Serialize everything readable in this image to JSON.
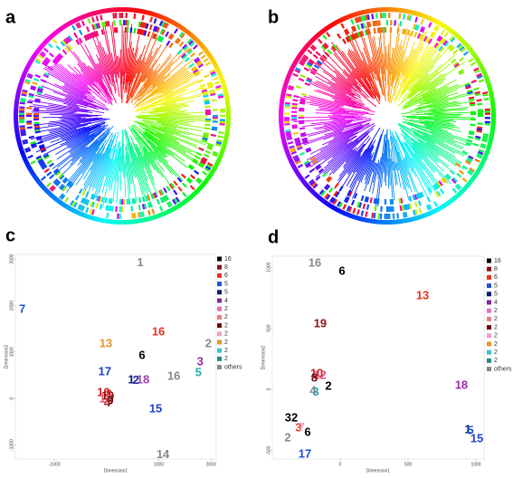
{
  "panels": [
    "a",
    "b"
  ],
  "chart_data": [
    {
      "type": "scatter",
      "panel": "c",
      "xlabel": "Dimension1",
      "ylabel": "Dimension2",
      "xlim": [
        -1750,
        2100
      ],
      "ylim": [
        -1300,
        3100
      ],
      "xticks": [
        -1000,
        1000,
        2000
      ],
      "yticks": [
        -1000,
        0,
        1000,
        2000,
        3000
      ],
      "labels": [
        "1",
        "7",
        "16",
        "13",
        "2",
        "6",
        "3",
        "5",
        "16",
        "17",
        "18",
        "10",
        "19",
        "8",
        "12",
        "9",
        "4",
        "1",
        "2",
        "15",
        "14"
      ],
      "colors": [
        "#888888",
        "#1f4fd6",
        "#e8321e",
        "#e0962a",
        "#888888",
        "#000000",
        "#9b2aa8",
        "#2aa8a8",
        "#888888",
        "#1f3fc8",
        "#a040b0",
        "#c82020",
        "#8b1010",
        "#d02828",
        "#e05070",
        "#5a1010",
        "#a02a2a",
        "#0a1a70",
        "#1a2aa0",
        "#2040d0",
        "#888888"
      ],
      "x": [
        643,
        -1617,
        991,
        -17,
        1948,
        678,
        1791,
        1757,
        1287,
        -35,
        696,
        -60,
        20,
        40,
        -20,
        70,
        10,
        470,
        560,
        939,
        1078
      ],
      "y": [
        2910,
        1914,
        1426,
        1172,
        1172,
        918,
        781,
        547,
        469,
        566,
        391,
        120,
        40,
        80,
        -20,
        -60,
        -100,
        391,
        380,
        -234,
        -1211
      ],
      "legend": {
        "names": [
          "16",
          "8",
          "6",
          "5",
          "5",
          "4",
          "2",
          "2",
          "2",
          "2",
          "2",
          "2",
          "2",
          "others"
        ],
        "colors": [
          "#000000",
          "#8b1010",
          "#e8321e",
          "#1f4fd6",
          "#0a1a70",
          "#7a2a9a",
          "#e070c0",
          "#e08080",
          "#6a0a0a",
          "#f0a0c0",
          "#e0962a",
          "#40c0d0",
          "#2a8a8a",
          "#888888"
        ]
      }
    },
    {
      "type": "scatter",
      "panel": "d",
      "xlabel": "Dimension1",
      "ylabel": "Dimension2",
      "xlim": [
        -500,
        1060
      ],
      "ylim": [
        -570,
        1090
      ],
      "xticks": [
        0,
        500,
        1000
      ],
      "yticks": [
        -500,
        0,
        500,
        1000
      ],
      "labels": [
        "16",
        "6",
        "13",
        "19",
        "18",
        "10",
        "12",
        "8",
        "2",
        "4",
        "3",
        "32",
        "3",
        "7",
        "6",
        "2",
        "17",
        "1",
        "5",
        "15"
      ],
      "colors": [
        "#888888",
        "#000000",
        "#e8321e",
        "#8b1010",
        "#9b2aa8",
        "#c82020",
        "#e05070",
        "#5a1010",
        "#000000",
        "#888888",
        "#2aa8a8",
        "#000000",
        "#e8321e",
        "#f0a0c0",
        "#000000",
        "#888888",
        "#1f4fd6",
        "#0a1a70",
        "#1f4fd6",
        "#2040d0"
      ],
      "x": [
        -187,
        13,
        607,
        -147,
        893,
        -173,
        -150,
        -190,
        -87,
        -200,
        -180,
        -360,
        -307,
        -285,
        -240,
        -387,
        -260,
        940,
        960,
        1007
      ],
      "y": [
        1030,
        963,
        763,
        533,
        30,
        126,
        110,
        90,
        22,
        -15,
        -25,
        -237,
        -319,
        -315,
        -356,
        -400,
        -533,
        -333,
        -340,
        -407
      ],
      "legend": {
        "names": [
          "16",
          "8",
          "6",
          "5",
          "5",
          "4",
          "2",
          "2",
          "2",
          "2",
          "2",
          "2",
          "2",
          "others"
        ],
        "colors": [
          "#000000",
          "#8b1010",
          "#e8321e",
          "#1f4fd6",
          "#0a1a70",
          "#7a2a9a",
          "#e070c0",
          "#e08080",
          "#6a0a0a",
          "#f0a0c0",
          "#e0962a",
          "#40c0d0",
          "#2a8a8a",
          "#888888"
        ]
      }
    }
  ]
}
